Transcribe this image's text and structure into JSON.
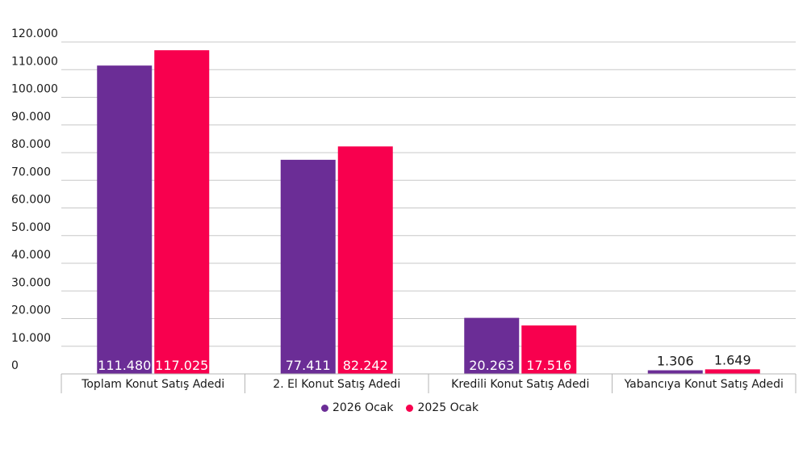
{
  "chart_data": {
    "type": "bar",
    "categories": [
      "Toplam Konut Satış Adedi",
      "2. El Konut Satış Adedi",
      "Kredili Konut Satış Adedi",
      "Yabancıya Konut Satış Adedi"
    ],
    "series": [
      {
        "name": "2026 Ocak",
        "values": [
          111480,
          77411,
          20263,
          1306
        ],
        "labels": [
          "111.480",
          "77.411",
          "20.263",
          "1.306"
        ],
        "color": "#6b2d96"
      },
      {
        "name": "2025 Ocak",
        "values": [
          117025,
          82242,
          17516,
          1649
        ],
        "labels": [
          "117.025",
          "82.242",
          "17.516",
          "1.649"
        ],
        "color": "#f8004e"
      }
    ],
    "y_ticks": [
      {
        "value": 0,
        "label": "0"
      },
      {
        "value": 10000,
        "label": "10.000"
      },
      {
        "value": 20000,
        "label": "20.000"
      },
      {
        "value": 30000,
        "label": "30.000"
      },
      {
        "value": 40000,
        "label": "40.000"
      },
      {
        "value": 50000,
        "label": "50.000"
      },
      {
        "value": 60000,
        "label": "60.000"
      },
      {
        "value": 70000,
        "label": "70.000"
      },
      {
        "value": 80000,
        "label": "80.000"
      },
      {
        "value": 90000,
        "label": "90.000"
      },
      {
        "value": 100000,
        "label": "100.000"
      },
      {
        "value": 110000,
        "label": "110.000"
      },
      {
        "value": 120000,
        "label": "120.000"
      }
    ],
    "ylim": [
      0,
      120000
    ],
    "grid": true,
    "legend_position": "bottom"
  }
}
